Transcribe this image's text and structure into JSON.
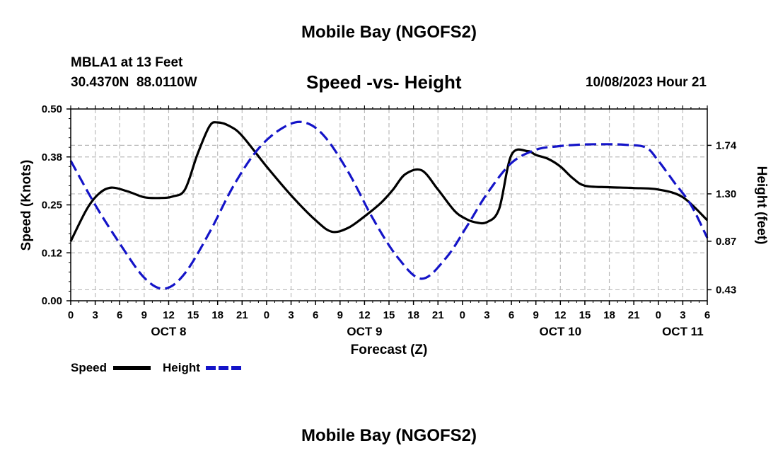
{
  "header": {
    "title": "Mobile Bay (NGOFS2)",
    "station": "MBLA1 at 13 Feet",
    "coords": "30.4370N  88.0110W",
    "subtitle": "Speed -vs- Height",
    "datetime": "10/08/2023 Hour 21"
  },
  "footer": {
    "title": "Mobile Bay (NGOFS2)"
  },
  "colors": {
    "speed": "#000000",
    "height": "#1414c8",
    "grid": "#bbbbbb"
  },
  "chart_data": {
    "type": "line",
    "title": "Speed -vs- Height",
    "xlabel": "Forecast (Z)",
    "ylabel": "Speed (Knots)",
    "y2label": "Height (feet)",
    "xlim": [
      0,
      78
    ],
    "ylim": [
      0.0,
      0.5
    ],
    "y2lim": [
      0.33,
      2.07
    ],
    "x_ticks": [
      0,
      3,
      6,
      9,
      12,
      15,
      18,
      21,
      24,
      27,
      30,
      33,
      36,
      39,
      42,
      45,
      48,
      51,
      54,
      57,
      60,
      63,
      66,
      69,
      72,
      75,
      78
    ],
    "x_tick_labels": [
      "0",
      "3",
      "6",
      "9",
      "12",
      "15",
      "18",
      "21",
      "0",
      "3",
      "6",
      "9",
      "12",
      "15",
      "18",
      "21",
      "0",
      "3",
      "6",
      "9",
      "12",
      "15",
      "18",
      "21",
      "0",
      "3",
      "6"
    ],
    "day_labels": [
      {
        "x": 12,
        "label": "OCT 8"
      },
      {
        "x": 36,
        "label": "OCT 9"
      },
      {
        "x": 60,
        "label": "OCT 10"
      },
      {
        "x": 75,
        "label": "OCT 11"
      }
    ],
    "y_ticks": [
      0.0,
      0.125,
      0.25,
      0.375,
      0.5
    ],
    "y_tick_labels": [
      "0.00",
      "0.12",
      "0.25",
      "0.38",
      "0.50"
    ],
    "y2_ticks": [
      0.43,
      0.87,
      1.3,
      1.74
    ],
    "y2_tick_labels": [
      "0.43",
      "0.87",
      "1.30",
      "1.74"
    ],
    "legend": [
      {
        "name": "Speed",
        "style": "solid"
      },
      {
        "name": "Height",
        "style": "dashed"
      }
    ],
    "series": [
      {
        "name": "Speed",
        "axis": "left",
        "style": "solid",
        "x": [
          0,
          2,
          3.5,
          5,
          7,
          9,
          11,
          12.5,
          14,
          15.5,
          17,
          18,
          19.5,
          21,
          24,
          27,
          30,
          32,
          34,
          36,
          38,
          39.5,
          41,
          43,
          45,
          47,
          48.3,
          49.5,
          51,
          52.5,
          54,
          56,
          57,
          58.5,
          60,
          61.5,
          63,
          66,
          69,
          72,
          75,
          78
        ],
        "values": [
          0.155,
          0.24,
          0.28,
          0.295,
          0.285,
          0.27,
          0.268,
          0.272,
          0.29,
          0.38,
          0.455,
          0.465,
          0.455,
          0.43,
          0.35,
          0.275,
          0.21,
          0.18,
          0.19,
          0.22,
          0.255,
          0.29,
          0.33,
          0.34,
          0.29,
          0.235,
          0.215,
          0.205,
          0.205,
          0.24,
          0.38,
          0.39,
          0.38,
          0.37,
          0.35,
          0.32,
          0.3,
          0.296,
          0.294,
          0.29,
          0.27,
          0.21
        ]
      },
      {
        "name": "Height",
        "axis": "right",
        "style": "dashed",
        "x": [
          0,
          3,
          6,
          9,
          11.5,
          14,
          17,
          20,
          23,
          26,
          28.5,
          31,
          34,
          37,
          40,
          43,
          46,
          48.5,
          51,
          54,
          57,
          59.5,
          62,
          65,
          68,
          70.5,
          72,
          74,
          76,
          78
        ],
        "values": [
          1.6,
          1.2,
          0.85,
          0.54,
          0.44,
          0.58,
          0.95,
          1.38,
          1.71,
          1.9,
          1.95,
          1.83,
          1.5,
          1.08,
          0.73,
          0.53,
          0.72,
          1.0,
          1.3,
          1.58,
          1.7,
          1.73,
          1.745,
          1.75,
          1.745,
          1.72,
          1.6,
          1.4,
          1.2,
          0.9
        ]
      }
    ]
  }
}
